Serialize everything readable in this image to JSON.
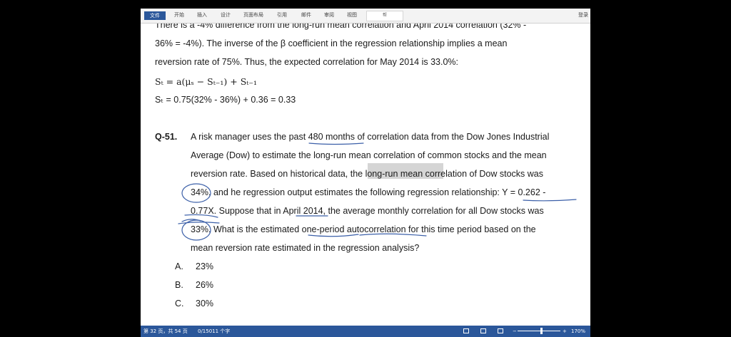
{
  "ribbon": {
    "tabs": [
      "文件",
      "开始",
      "插入",
      "设计",
      "页面布局",
      "引用",
      "邮件",
      "审阅",
      "视图"
    ],
    "search_label": "帮",
    "login_label": "登录"
  },
  "document": {
    "line_top": "There is a -4% difference from the long-run mean correlation and April 2014 correlation (32% -",
    "line1": "36% = -4%). The inverse of the β coefficient in the regression relationship implies a mean",
    "line2": "reversion rate of 75%. Thus, the expected correlation for May 2014 is 33.0%:",
    "formula_symbolic": "Sₜ = a(μₛ − Sₜ₋₁) + Sₜ₋₁",
    "formula_numeric": "Sₜ = 0.75(32% - 36%) + 0.36 = 0.33",
    "question_number": "Q-51.",
    "question_lines": [
      "A risk manager uses the past 480 months of correlation data from the Dow Jones Industrial",
      "Average (Dow) to estimate the long-run mean correlation of common stocks and the mean",
      "reversion rate. Based on historical data, the long-run mean correlation of Dow stocks was",
      "34%, and he regression output estimates the following regression relationship: Y = 0.262 -",
      "0.77X. Suppose that in April 2014, the average monthly correlation for all Dow stocks was",
      "33%. What is the estimated one-period autocorrelation for this time period based on the",
      "mean reversion rate estimated in the regression analysis?"
    ],
    "options": [
      {
        "letter": "A.",
        "value": "23%"
      },
      {
        "letter": "B.",
        "value": "26%"
      },
      {
        "letter": "C.",
        "value": "30%"
      }
    ]
  },
  "status": {
    "page": "第 32 页，共 54 页",
    "words": "0/15011 个字",
    "zoom": "170%"
  },
  "colors": {
    "accent": "#2b579a",
    "ink": "#3b5fa8"
  }
}
